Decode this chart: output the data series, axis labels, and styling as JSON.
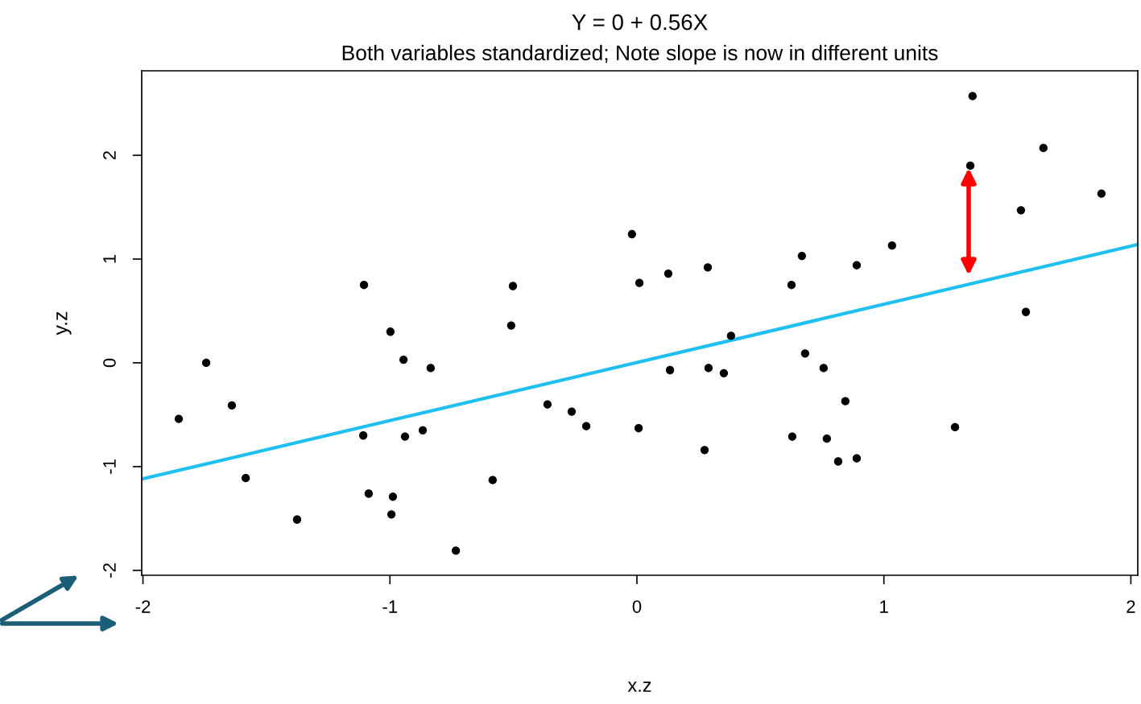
{
  "chart_data": {
    "type": "scatter",
    "title": "Y = 0 + 0.56X",
    "subtitle": "Both variables standardized; Note slope is now in different units",
    "xlabel": "x.z",
    "ylabel": "y.z",
    "xlim": [
      -2.005,
      2.028
    ],
    "ylim": [
      -2.047,
      2.814
    ],
    "xticks": [
      -2,
      -1,
      0,
      1,
      2
    ],
    "yticks": [
      -2,
      -1,
      0,
      1,
      2
    ],
    "grid": false,
    "series": [
      {
        "marker": "circle",
        "color": "#000000",
        "x": [
          -1.855,
          -1.744,
          -1.64,
          -1.584,
          -1.376,
          -1.105,
          -1.108,
          -1.086,
          -0.998,
          -0.988,
          -0.994,
          -0.945,
          -0.939,
          -0.867,
          -0.835,
          -0.733,
          -0.584,
          -0.509,
          -0.502,
          -0.362,
          -0.264,
          -0.205,
          -0.02,
          0.007,
          0.01,
          0.127,
          0.134,
          0.274,
          0.29,
          0.287,
          0.352,
          0.381,
          0.626,
          0.629,
          0.668,
          0.681,
          0.756,
          0.769,
          0.815,
          0.844,
          0.89,
          0.89,
          1.033,
          1.288,
          1.35,
          1.359,
          1.555,
          1.575,
          1.646,
          1.881
        ],
        "values": [
          -0.54,
          0.0,
          -0.41,
          -1.11,
          -1.51,
          0.75,
          -0.7,
          -1.26,
          0.3,
          -1.29,
          -1.46,
          0.03,
          -0.71,
          -0.65,
          -0.05,
          -1.81,
          -1.13,
          0.36,
          0.74,
          -0.4,
          -0.47,
          -0.61,
          1.24,
          -0.63,
          0.77,
          0.86,
          -0.07,
          -0.84,
          -0.05,
          0.92,
          -0.1,
          0.26,
          0.75,
          -0.71,
          1.03,
          0.09,
          -0.05,
          -0.73,
          -0.95,
          -0.37,
          0.94,
          -0.92,
          1.13,
          -0.62,
          1.9,
          2.57,
          1.47,
          0.49,
          2.07,
          1.63
        ]
      },
      {
        "type": "line",
        "marker": "none",
        "color": "#1fbff0",
        "x": [
          -2.005,
          2.028
        ],
        "values": [
          -1.12,
          1.14
        ]
      }
    ]
  }
}
